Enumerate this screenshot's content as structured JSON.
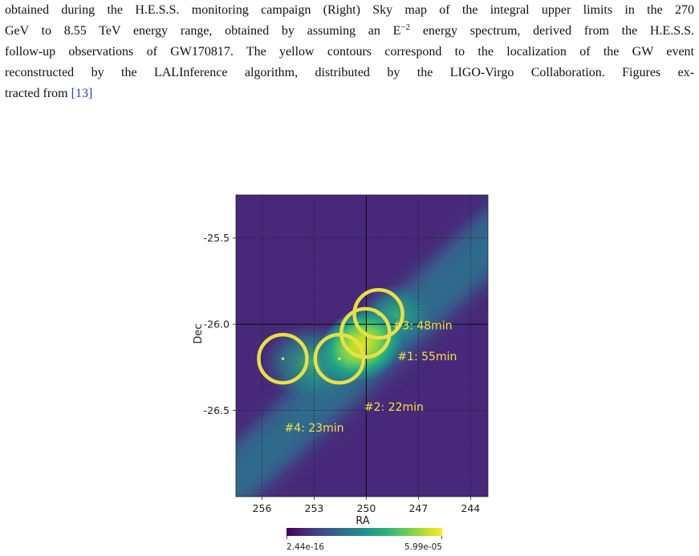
{
  "caption": {
    "line1": "obtained during the H.E.S.S. monitoring campaign (Right) Sky map of the integral upper limits in the 270",
    "line2_pre": "GeV to 8.55 TeV energy range, obtained by assuming an E",
    "line2_sup": "−2",
    "line2_post": " energy spectrum, derived from the H.E.S.S.",
    "line3": "follow-up observations of GW170817. The yellow contours correspond to the localization of the GW event",
    "line4": "reconstructed by the LALInference algorithm, distributed by the LIGO-Virgo Collaboration. Figures ex-",
    "line5_pre": "tracted from ",
    "ref_open": "[",
    "ref_num": "13",
    "ref_close": "]"
  },
  "chart_data": {
    "type": "heatmap",
    "xlabel": "RA",
    "ylabel": "Dec",
    "x_ticks": [
      "256",
      "253",
      "250",
      "247",
      "244"
    ],
    "y_ticks": [
      "-25.5",
      "-26.0",
      "-26.5"
    ],
    "xlim": [
      257.5,
      243.0
    ],
    "ylim": [
      -27.0,
      -25.25
    ],
    "grid": true,
    "crosshair": {
      "ra": 250.0,
      "dec": -26.0
    },
    "colorbar": {
      "min_label": "2.44e-16",
      "max_label": "5.99e-05",
      "colormap": "viridis"
    },
    "pointings": [
      {
        "label": "#1: 55min",
        "ra": 250.05,
        "dec": -26.05
      },
      {
        "label": "#2: 22min",
        "ra": 251.55,
        "dec": -26.2
      },
      {
        "label": "#3: 48min",
        "ra": 249.3,
        "dec": -25.94
      },
      {
        "label": "#4: 23min",
        "ra": 254.8,
        "dec": -26.2
      }
    ],
    "contour_color": "#eadf46"
  }
}
